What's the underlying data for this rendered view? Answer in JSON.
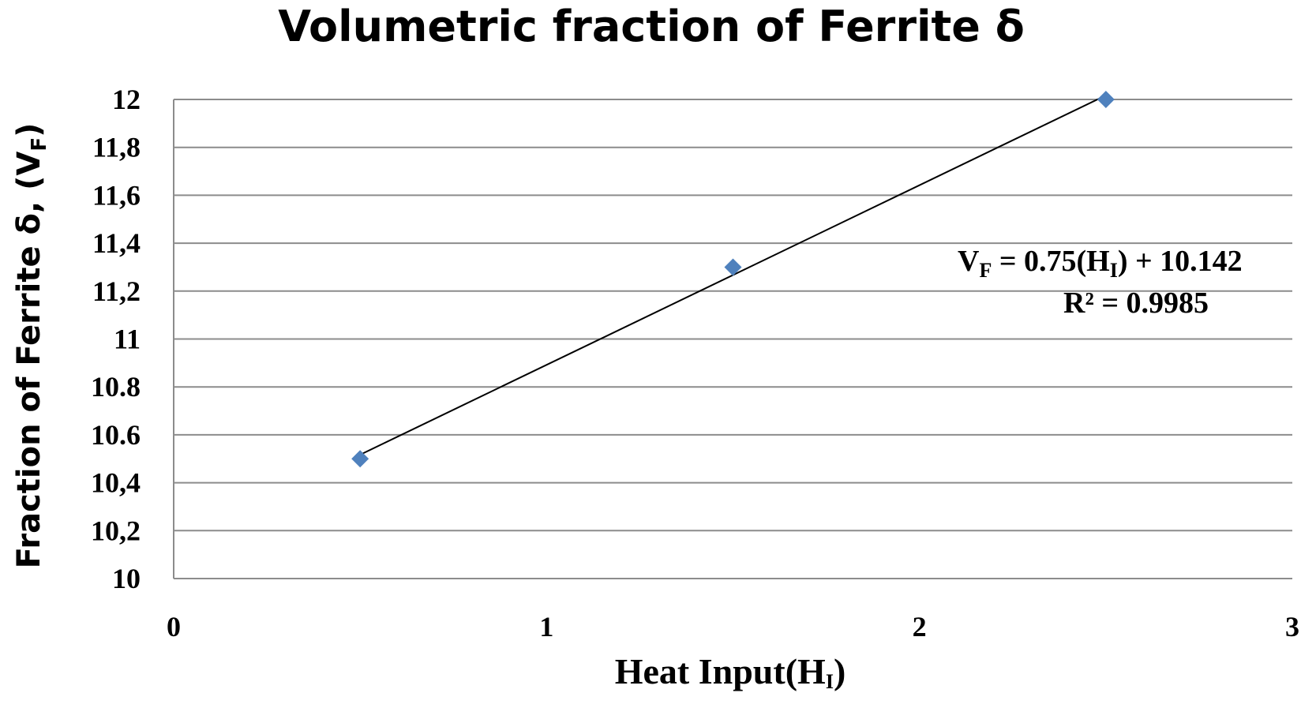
{
  "chart_data": {
    "type": "scatter",
    "title": "Volumetric fraction of Ferrite δ",
    "xlabel": {
      "main": "Heat Input(H",
      "sub": "I",
      "tail": ")"
    },
    "ylabel": {
      "main": "Fraction of Ferrite δ, (V",
      "sub": "F",
      "tail": ")"
    },
    "xlim": [
      0,
      3
    ],
    "ylim": [
      10,
      12
    ],
    "x_ticks": [
      "0",
      "1",
      "2",
      "3"
    ],
    "y_ticks": [
      "10",
      "10,2",
      "10,4",
      "10.6",
      "10.8",
      "11",
      "11,2",
      "11,4",
      "11,6",
      "11,8",
      "12"
    ],
    "grid": true,
    "series": [
      {
        "x": [
          0.5,
          1.5,
          2.5
        ],
        "y": [
          10.5,
          11.3,
          12.0
        ],
        "color": "#4F81BD",
        "marker": "diamond"
      }
    ],
    "trendline": {
      "type": "linear",
      "slope": 0.75,
      "intercept": 10.142,
      "x_range": [
        0.5,
        2.5
      ],
      "color": "#000000",
      "equation": {
        "lhs": "V",
        "lhs_sub": "F",
        "mid": " = 0.75(H",
        "mid_sub": "I",
        "tail": ") + 10.142"
      },
      "r2_label": "R² = 0.9985"
    }
  }
}
